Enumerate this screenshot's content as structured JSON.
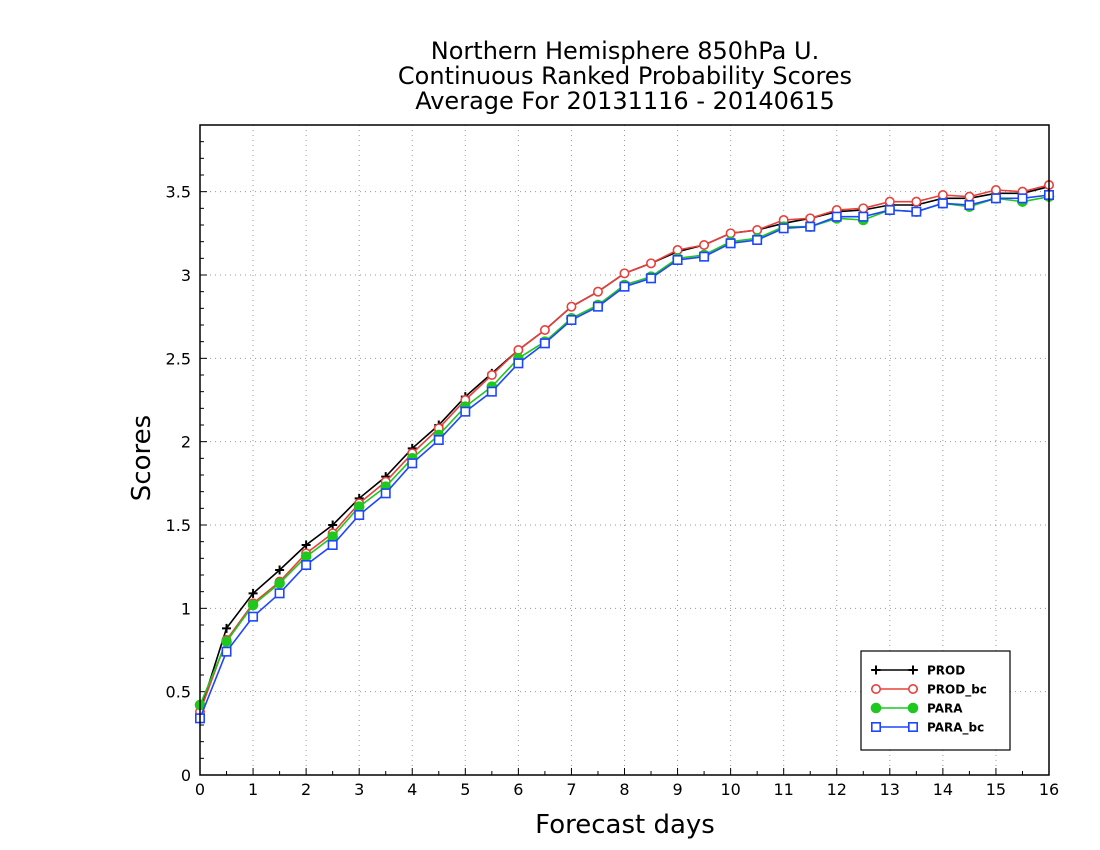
{
  "chart_data": {
    "type": "line",
    "title": [
      "Northern Hemisphere 850hPa U.",
      "Continuous Ranked Probability Scores",
      "Average For 20131116 - 20140615"
    ],
    "xlabel": "Forecast days",
    "ylabel": "Scores",
    "xlim": [
      0,
      16
    ],
    "ylim": [
      0,
      3.9
    ],
    "xticks": [
      0,
      1,
      2,
      3,
      4,
      5,
      6,
      7,
      8,
      9,
      10,
      11,
      12,
      13,
      14,
      15,
      16
    ],
    "xtick_labels": [
      "0",
      "1",
      "2",
      "3",
      "4",
      "5",
      "6",
      "7",
      "8",
      "9",
      "10",
      "11",
      "12",
      "13",
      "14",
      "15",
      "16"
    ],
    "yticks": [
      0,
      0.5,
      1,
      1.5,
      2,
      2.5,
      3,
      3.5
    ],
    "ytick_labels": [
      "0",
      "0.5",
      "1",
      "1.5",
      "2",
      "2.5",
      "3",
      "3.5"
    ],
    "grid": true,
    "legend_position": "bottom-right",
    "x": [
      0,
      0.5,
      1,
      1.5,
      2,
      2.5,
      3,
      3.5,
      4,
      4.5,
      5,
      5.5,
      6,
      6.5,
      7,
      7.5,
      8,
      8.5,
      9,
      9.5,
      10,
      10.5,
      11,
      11.5,
      12,
      12.5,
      13,
      13.5,
      14,
      14.5,
      15,
      15.5,
      16
    ],
    "series": [
      {
        "name": "PROD",
        "color": "#000000",
        "marker": "plus",
        "values": [
          0.38,
          0.88,
          1.09,
          1.23,
          1.38,
          1.5,
          1.66,
          1.79,
          1.96,
          2.1,
          2.27,
          2.41,
          2.55,
          2.67,
          2.81,
          2.9,
          3.01,
          3.07,
          3.14,
          3.18,
          3.25,
          3.27,
          3.31,
          3.34,
          3.38,
          3.39,
          3.42,
          3.42,
          3.46,
          3.46,
          3.49,
          3.49,
          3.53
        ]
      },
      {
        "name": "PROD_bc",
        "color": "#e8403a",
        "marker": "open-circle",
        "values": [
          0.38,
          0.81,
          1.03,
          1.16,
          1.33,
          1.45,
          1.63,
          1.76,
          1.93,
          2.08,
          2.25,
          2.4,
          2.55,
          2.67,
          2.81,
          2.9,
          3.01,
          3.07,
          3.15,
          3.18,
          3.25,
          3.27,
          3.33,
          3.34,
          3.39,
          3.4,
          3.44,
          3.44,
          3.48,
          3.47,
          3.51,
          3.5,
          3.54
        ]
      },
      {
        "name": "PARA",
        "color": "#1ec81e",
        "marker": "filled-circle",
        "values": [
          0.42,
          0.8,
          1.02,
          1.15,
          1.31,
          1.43,
          1.61,
          1.73,
          1.9,
          2.04,
          2.21,
          2.33,
          2.5,
          2.6,
          2.74,
          2.82,
          2.94,
          2.99,
          3.1,
          3.12,
          3.2,
          3.22,
          3.29,
          3.29,
          3.34,
          3.33,
          3.39,
          3.38,
          3.43,
          3.41,
          3.46,
          3.44,
          3.47
        ]
      },
      {
        "name": "PARA_bc",
        "color": "#1e46ff",
        "marker": "open-square",
        "values": [
          0.34,
          0.74,
          0.95,
          1.09,
          1.26,
          1.38,
          1.56,
          1.69,
          1.87,
          2.01,
          2.18,
          2.3,
          2.47,
          2.59,
          2.73,
          2.81,
          2.93,
          2.98,
          3.09,
          3.11,
          3.19,
          3.21,
          3.28,
          3.29,
          3.35,
          3.35,
          3.39,
          3.38,
          3.43,
          3.42,
          3.46,
          3.46,
          3.48
        ]
      }
    ]
  }
}
